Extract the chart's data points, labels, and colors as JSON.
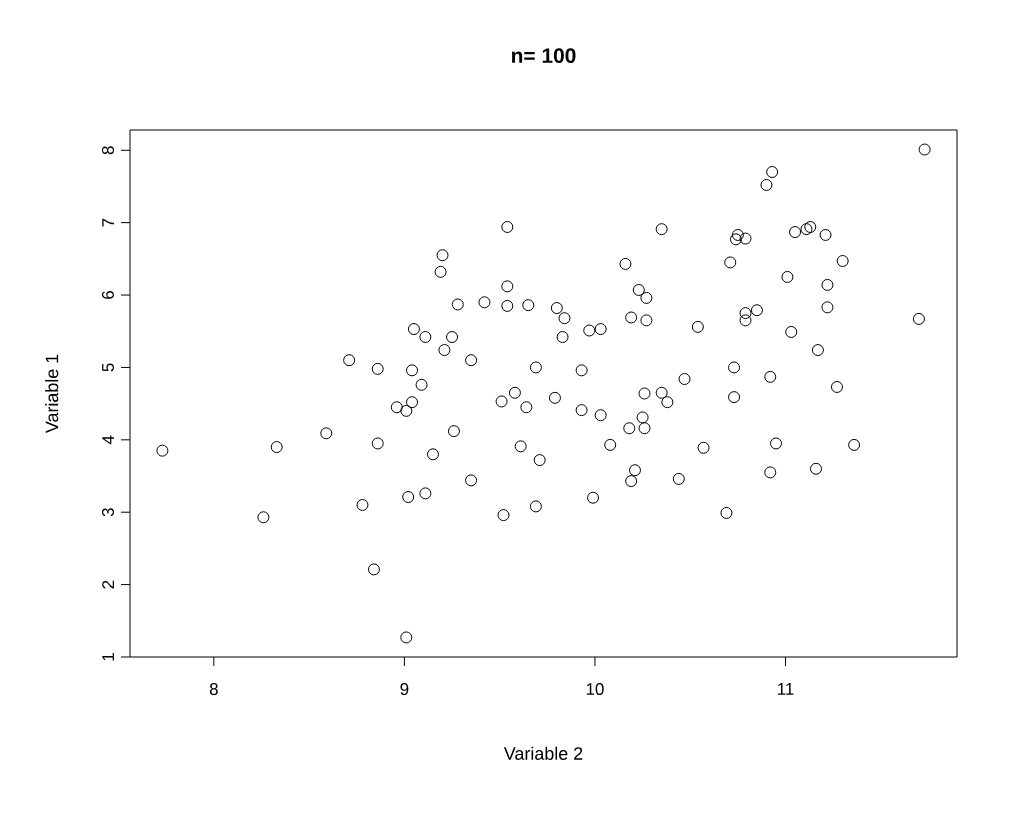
{
  "chart_data": {
    "type": "scatter",
    "title": "n= 100",
    "xlabel": "Variable 2",
    "ylabel": "Variable 1",
    "x": [
      7.73,
      8.26,
      8.33,
      8.59,
      8.71,
      8.78,
      8.84,
      8.86,
      8.86,
      8.96,
      9.01,
      9.01,
      9.02,
      9.04,
      9.04,
      9.05,
      9.09,
      9.11,
      9.11,
      9.15,
      9.19,
      9.2,
      9.21,
      9.25,
      9.26,
      9.28,
      9.35,
      9.35,
      9.42,
      9.51,
      9.52,
      9.54,
      9.54,
      9.54,
      9.58,
      9.61,
      9.64,
      9.65,
      9.69,
      9.69,
      9.71,
      9.79,
      9.8,
      9.83,
      9.84,
      9.93,
      9.93,
      9.97,
      9.99,
      10.03,
      10.03,
      10.08,
      10.16,
      10.18,
      10.19,
      10.19,
      10.21,
      10.23,
      10.25,
      10.26,
      10.26,
      10.27,
      10.27,
      10.35,
      10.35,
      10.38,
      10.44,
      10.47,
      10.54,
      10.57,
      10.69,
      10.71,
      10.73,
      10.73,
      10.74,
      10.75,
      10.79,
      10.79,
      10.79,
      10.85,
      10.9,
      10.92,
      10.92,
      10.93,
      10.95,
      11.01,
      11.03,
      11.05,
      11.11,
      11.13,
      11.16,
      11.17,
      11.21,
      11.22,
      11.22,
      11.27,
      11.3,
      11.36,
      11.7,
      11.73
    ],
    "values": [
      3.85,
      2.93,
      3.9,
      4.09,
      5.1,
      3.1,
      2.21,
      4.98,
      3.95,
      4.45,
      4.4,
      1.27,
      3.21,
      4.96,
      4.52,
      5.53,
      4.76,
      5.42,
      3.26,
      3.8,
      6.32,
      6.55,
      5.24,
      5.42,
      4.12,
      5.87,
      3.44,
      5.1,
      5.9,
      4.53,
      2.96,
      5.85,
      6.94,
      6.12,
      4.65,
      3.91,
      4.45,
      5.86,
      5.0,
      3.08,
      3.72,
      4.58,
      5.82,
      5.42,
      5.68,
      4.41,
      4.96,
      5.51,
      3.2,
      4.34,
      5.53,
      3.93,
      6.43,
      4.16,
      3.43,
      5.69,
      3.58,
      6.07,
      4.31,
      4.64,
      4.16,
      5.96,
      5.65,
      6.91,
      4.65,
      4.52,
      3.46,
      4.84,
      5.56,
      3.89,
      2.99,
      6.45,
      5.0,
      4.59,
      6.77,
      6.83,
      5.75,
      5.65,
      6.78,
      5.79,
      7.52,
      4.87,
      3.55,
      7.7,
      3.95,
      6.25,
      5.49,
      6.87,
      6.91,
      6.94,
      3.6,
      5.24,
      6.83,
      6.14,
      5.83,
      4.73,
      6.47,
      3.93,
      5.67,
      8.01
    ],
    "color": "#000000",
    "marker": "circle",
    "xlim": [
      7.56,
      11.9
    ],
    "ylim": [
      1.0,
      8.28
    ],
    "xticks": [
      8,
      9,
      10,
      11
    ],
    "yticks": [
      1,
      2,
      3,
      4,
      5,
      6,
      7,
      8
    ]
  }
}
